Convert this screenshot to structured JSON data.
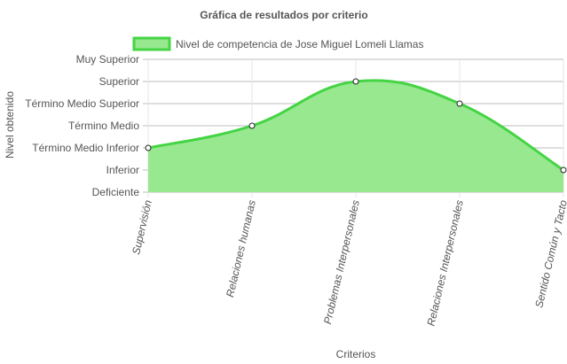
{
  "chart_data": {
    "type": "area",
    "title": "Gráfica de resultados por criterio",
    "xlabel": "Criterios",
    "ylabel": "Nivel obtenido",
    "categories": [
      "Supervisión",
      "Relaciones humanas",
      "Problemas Interpersonales",
      "Relaciones Interpersonales",
      "Sentido Común y Tacto"
    ],
    "y_levels": [
      "Deficiente",
      "Inferior",
      "Término Medio Inferior",
      "Término Medio",
      "Término Medio Superior",
      "Superior",
      "Muy Superior"
    ],
    "ylim": [
      0,
      6
    ],
    "series": [
      {
        "name": "Nivel de competencia de Jose Miguel Lomeli Llamas",
        "values": [
          2,
          3,
          5,
          4,
          1
        ]
      }
    ],
    "colors": {
      "fill": "#98E890",
      "line": "#44D444",
      "point_fill": "#ffffff",
      "point_stroke": "#222222",
      "grid": "#e4e4e4",
      "grid_strong": "#bdbdbd"
    },
    "legend_position": "top",
    "grid": true
  }
}
